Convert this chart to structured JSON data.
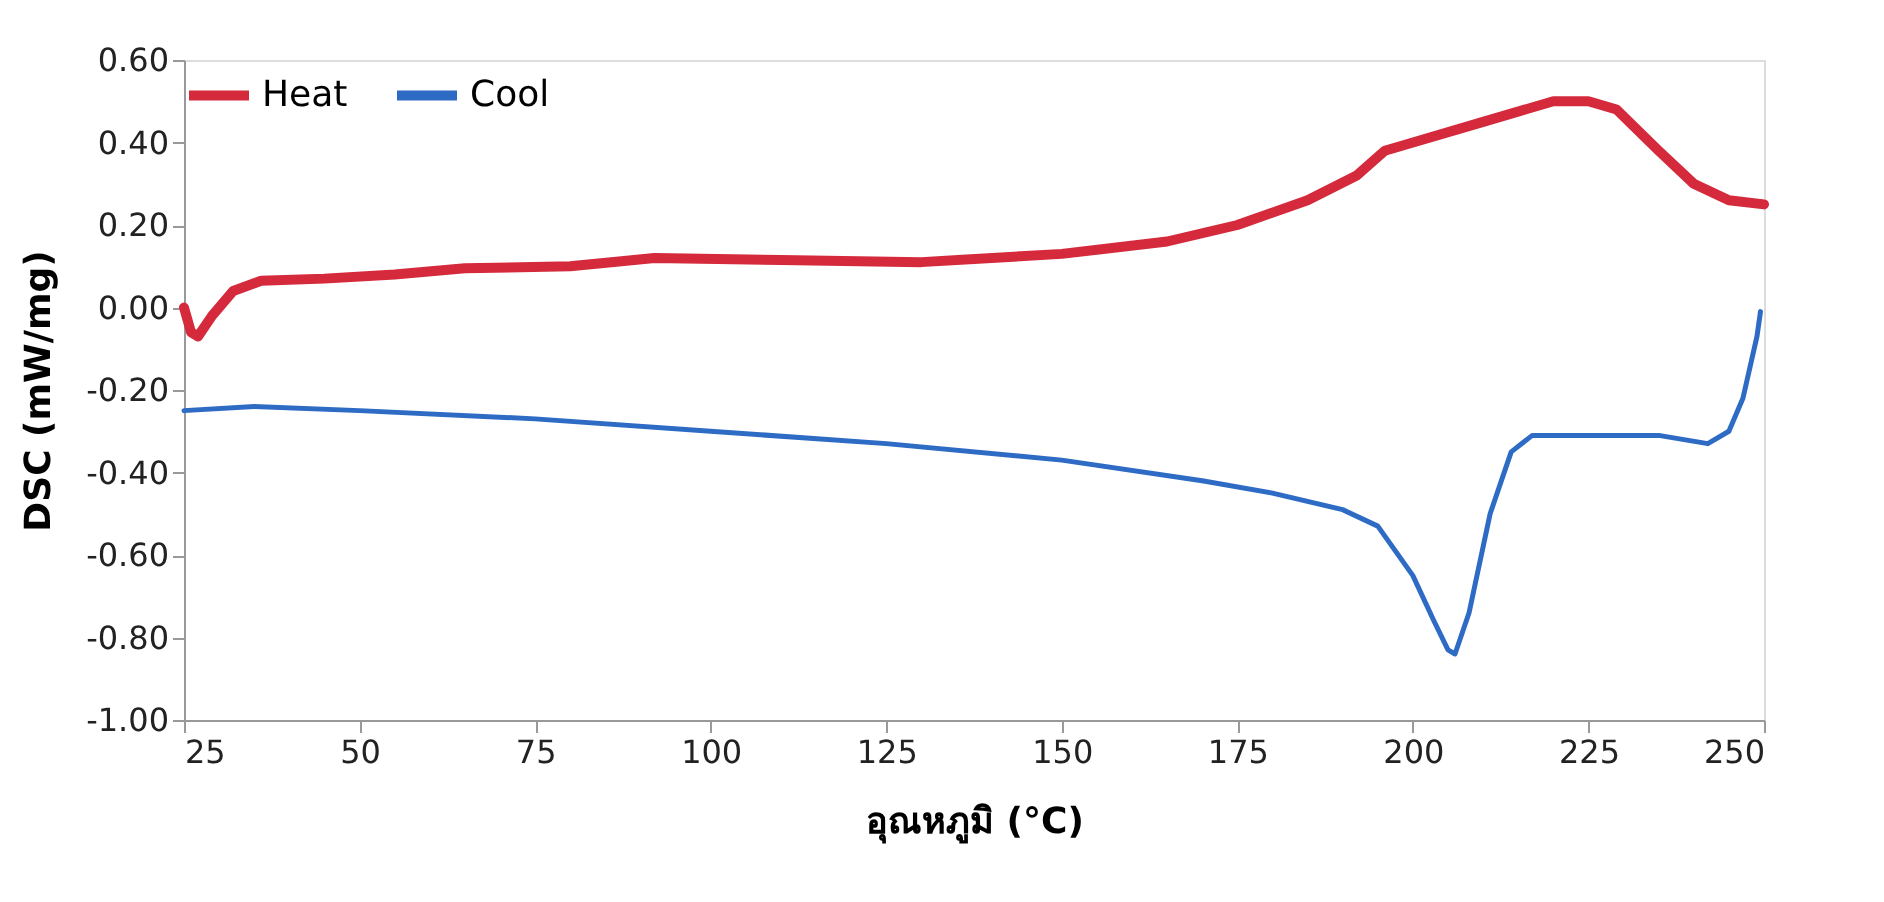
{
  "chart_data": {
    "type": "line",
    "xlabel": "อุณหภูมิ (°C)",
    "ylabel": "DSC (mW/mg)",
    "xlim": [
      25,
      250
    ],
    "xticks": [
      25,
      50,
      75,
      100,
      125,
      150,
      175,
      200,
      225,
      250
    ],
    "ylim": [
      -1.0,
      0.6
    ],
    "yticks": [
      {
        "value": -1.0,
        "label": "-1.00"
      },
      {
        "value": -0.8,
        "label": "-0.80"
      },
      {
        "value": -0.6,
        "label": "-0.60"
      },
      {
        "value": -0.4,
        "label": "-0.40"
      },
      {
        "value": -0.2,
        "label": "-0.20"
      },
      {
        "value": 0.0,
        "label": "0.00"
      },
      {
        "value": 0.2,
        "label": "0.20"
      },
      {
        "value": 0.4,
        "label": "0.40"
      },
      {
        "value": 0.6,
        "label": "0.60"
      }
    ],
    "grid": false,
    "legend": "top left",
    "marker": "none",
    "line_style": "solid",
    "series": [
      {
        "name": "Heat",
        "color": "#d42a3c",
        "x": [
          25,
          26,
          27,
          29,
          32,
          36,
          45,
          55,
          65,
          80,
          92,
          110,
          130,
          150,
          165,
          175,
          185,
          192,
          196,
          200,
          210,
          220,
          225,
          229,
          235,
          240,
          245,
          250
        ],
        "values": [
          0.0,
          -0.06,
          -0.07,
          -0.02,
          0.04,
          0.065,
          0.07,
          0.08,
          0.095,
          0.1,
          0.12,
          0.115,
          0.11,
          0.13,
          0.16,
          0.2,
          0.26,
          0.32,
          0.38,
          0.4,
          0.45,
          0.5,
          0.5,
          0.48,
          0.38,
          0.3,
          0.26,
          0.25
        ]
      },
      {
        "name": "Cool",
        "color": "#2e6bc4",
        "x": [
          25,
          35,
          50,
          75,
          100,
          125,
          150,
          170,
          180,
          190,
          195,
          200,
          203,
          205,
          206,
          208,
          211,
          214,
          217,
          225,
          235,
          242,
          245,
          247,
          249,
          249.5
        ],
        "values": [
          -0.25,
          -0.24,
          -0.25,
          -0.27,
          -0.3,
          -0.33,
          -0.37,
          -0.42,
          -0.45,
          -0.49,
          -0.53,
          -0.65,
          -0.76,
          -0.83,
          -0.84,
          -0.74,
          -0.5,
          -0.35,
          -0.31,
          -0.31,
          -0.31,
          -0.33,
          -0.3,
          -0.22,
          -0.07,
          -0.01
        ]
      }
    ]
  }
}
